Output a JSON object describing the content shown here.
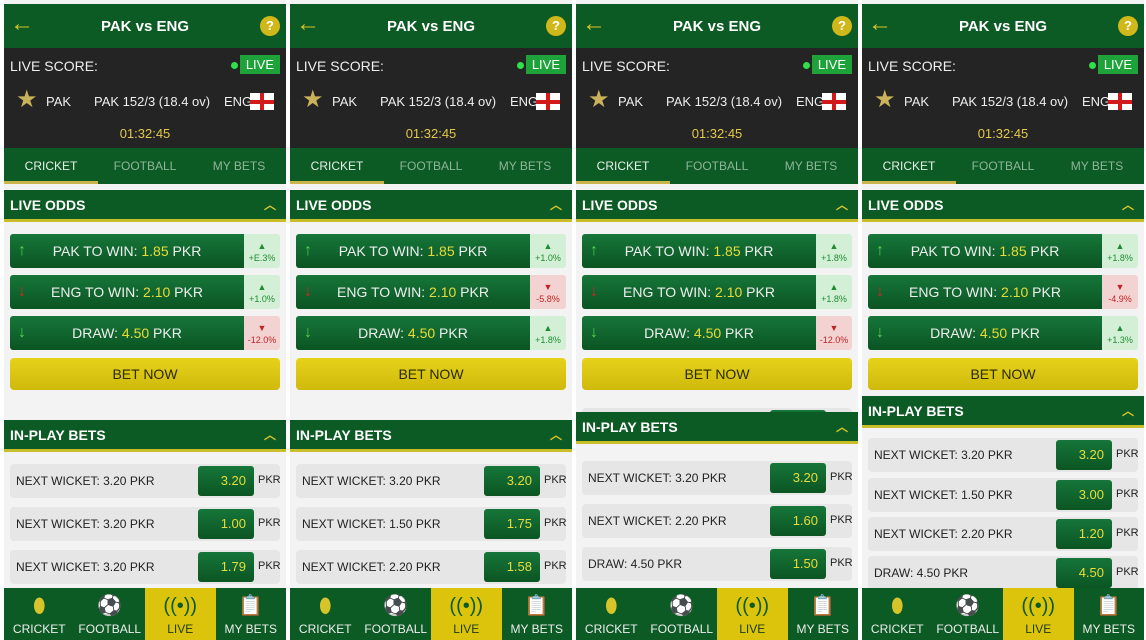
{
  "common": {
    "title": "PAK vs ENG",
    "help": "?",
    "live_score_label": "LIVE SCORE:",
    "live_badge": "LIVE",
    "team1": "PAK",
    "score": "PAK 152/3 (18.4 ov)",
    "team2": "ENG",
    "timer": "01:32:45",
    "tabs": [
      "CRICKET",
      "FOOTBALL",
      "MY BETS"
    ],
    "active_tab": 0,
    "live_odds_title": "LIVE ODDS",
    "bet_now": "BET NOW",
    "in_play_title": "IN-PLAY BETS",
    "nav": [
      {
        "label": "CRICKET",
        "icon": "cricket-ball-icon"
      },
      {
        "label": "FOOTBALL",
        "icon": "football-icon"
      },
      {
        "label": "LIVE",
        "icon": "live-broadcast-icon"
      },
      {
        "label": "MY BETS",
        "icon": "clipboard-icon"
      }
    ],
    "active_nav": 2,
    "odds_labels": [
      {
        "prefix": "PAK TO WIN: ",
        "value": "1.85",
        "suffix": " PKR",
        "arrow": "up"
      },
      {
        "prefix": "ENG TO WIN: ",
        "value": "2.10",
        "suffix": " PKR",
        "arrow": "down"
      },
      {
        "prefix": "DRAW: ",
        "value": "4.50",
        "suffix": " PKR",
        "arrow": "down-green"
      }
    ],
    "currency": "PKR",
    "colors": {
      "green": "#0c5a24",
      "yellow": "#dcc40c",
      "up": "#1d8c33",
      "down": "#c12424"
    }
  },
  "panels": [
    {
      "changes": [
        {
          "dir": "up",
          "text": "+E.3%"
        },
        {
          "dir": "up",
          "text": "+1.0%"
        },
        {
          "dir": "down",
          "text": "-12.0%"
        }
      ],
      "bets": [
        {
          "label": "NEXT WICKET: 3.20 PKR",
          "value": "3.20"
        },
        {
          "label": "NEXT WICKET: 3.20 PKR",
          "value": "1.00"
        },
        {
          "label": "NEXT WICKET: 3.20 PKR",
          "value": "1.79"
        }
      ]
    },
    {
      "changes": [
        {
          "dir": "up",
          "text": "+1.0%"
        },
        {
          "dir": "down",
          "text": "-5.8%"
        },
        {
          "dir": "up",
          "text": "+1.8%"
        }
      ],
      "bets": [
        {
          "label": "NEXT WICKET: 3.20 PKR",
          "value": "3.20"
        },
        {
          "label": "NEXT WICKET: 1.50 PKR",
          "value": "1.75"
        },
        {
          "label": "NEXT WICKET: 2.20 PKR",
          "value": "1.58"
        }
      ]
    },
    {
      "changes": [
        {
          "dir": "up",
          "text": "+1.8%"
        },
        {
          "dir": "up",
          "text": "+1.8%"
        },
        {
          "dir": "down",
          "text": "-12.0%"
        }
      ],
      "bets": [
        {
          "label": "NEXT WICKET: 3.20 PKR",
          "value": "3.20"
        },
        {
          "label": "NEXT WICKET: 2.20 PKR",
          "value": "1.60"
        },
        {
          "label": "DRAW: 4.50 PKR",
          "value": "1.50"
        }
      ]
    },
    {
      "changes": [
        {
          "dir": "up",
          "text": "+1.8%"
        },
        {
          "dir": "down",
          "text": "-4.9%"
        },
        {
          "dir": "up",
          "text": "+1.3%"
        }
      ],
      "bets": [
        {
          "label": "NEXT WICKET: 3.20 PKR",
          "value": "3.20"
        },
        {
          "label": "NEXT WICKET: 1.50 PKR",
          "value": "3.00"
        },
        {
          "label": "NEXT WICKET: 2.20 PKR",
          "value": "1.20"
        },
        {
          "label": "DRAW: 4.50 PKR",
          "value": "4.50"
        }
      ]
    }
  ]
}
